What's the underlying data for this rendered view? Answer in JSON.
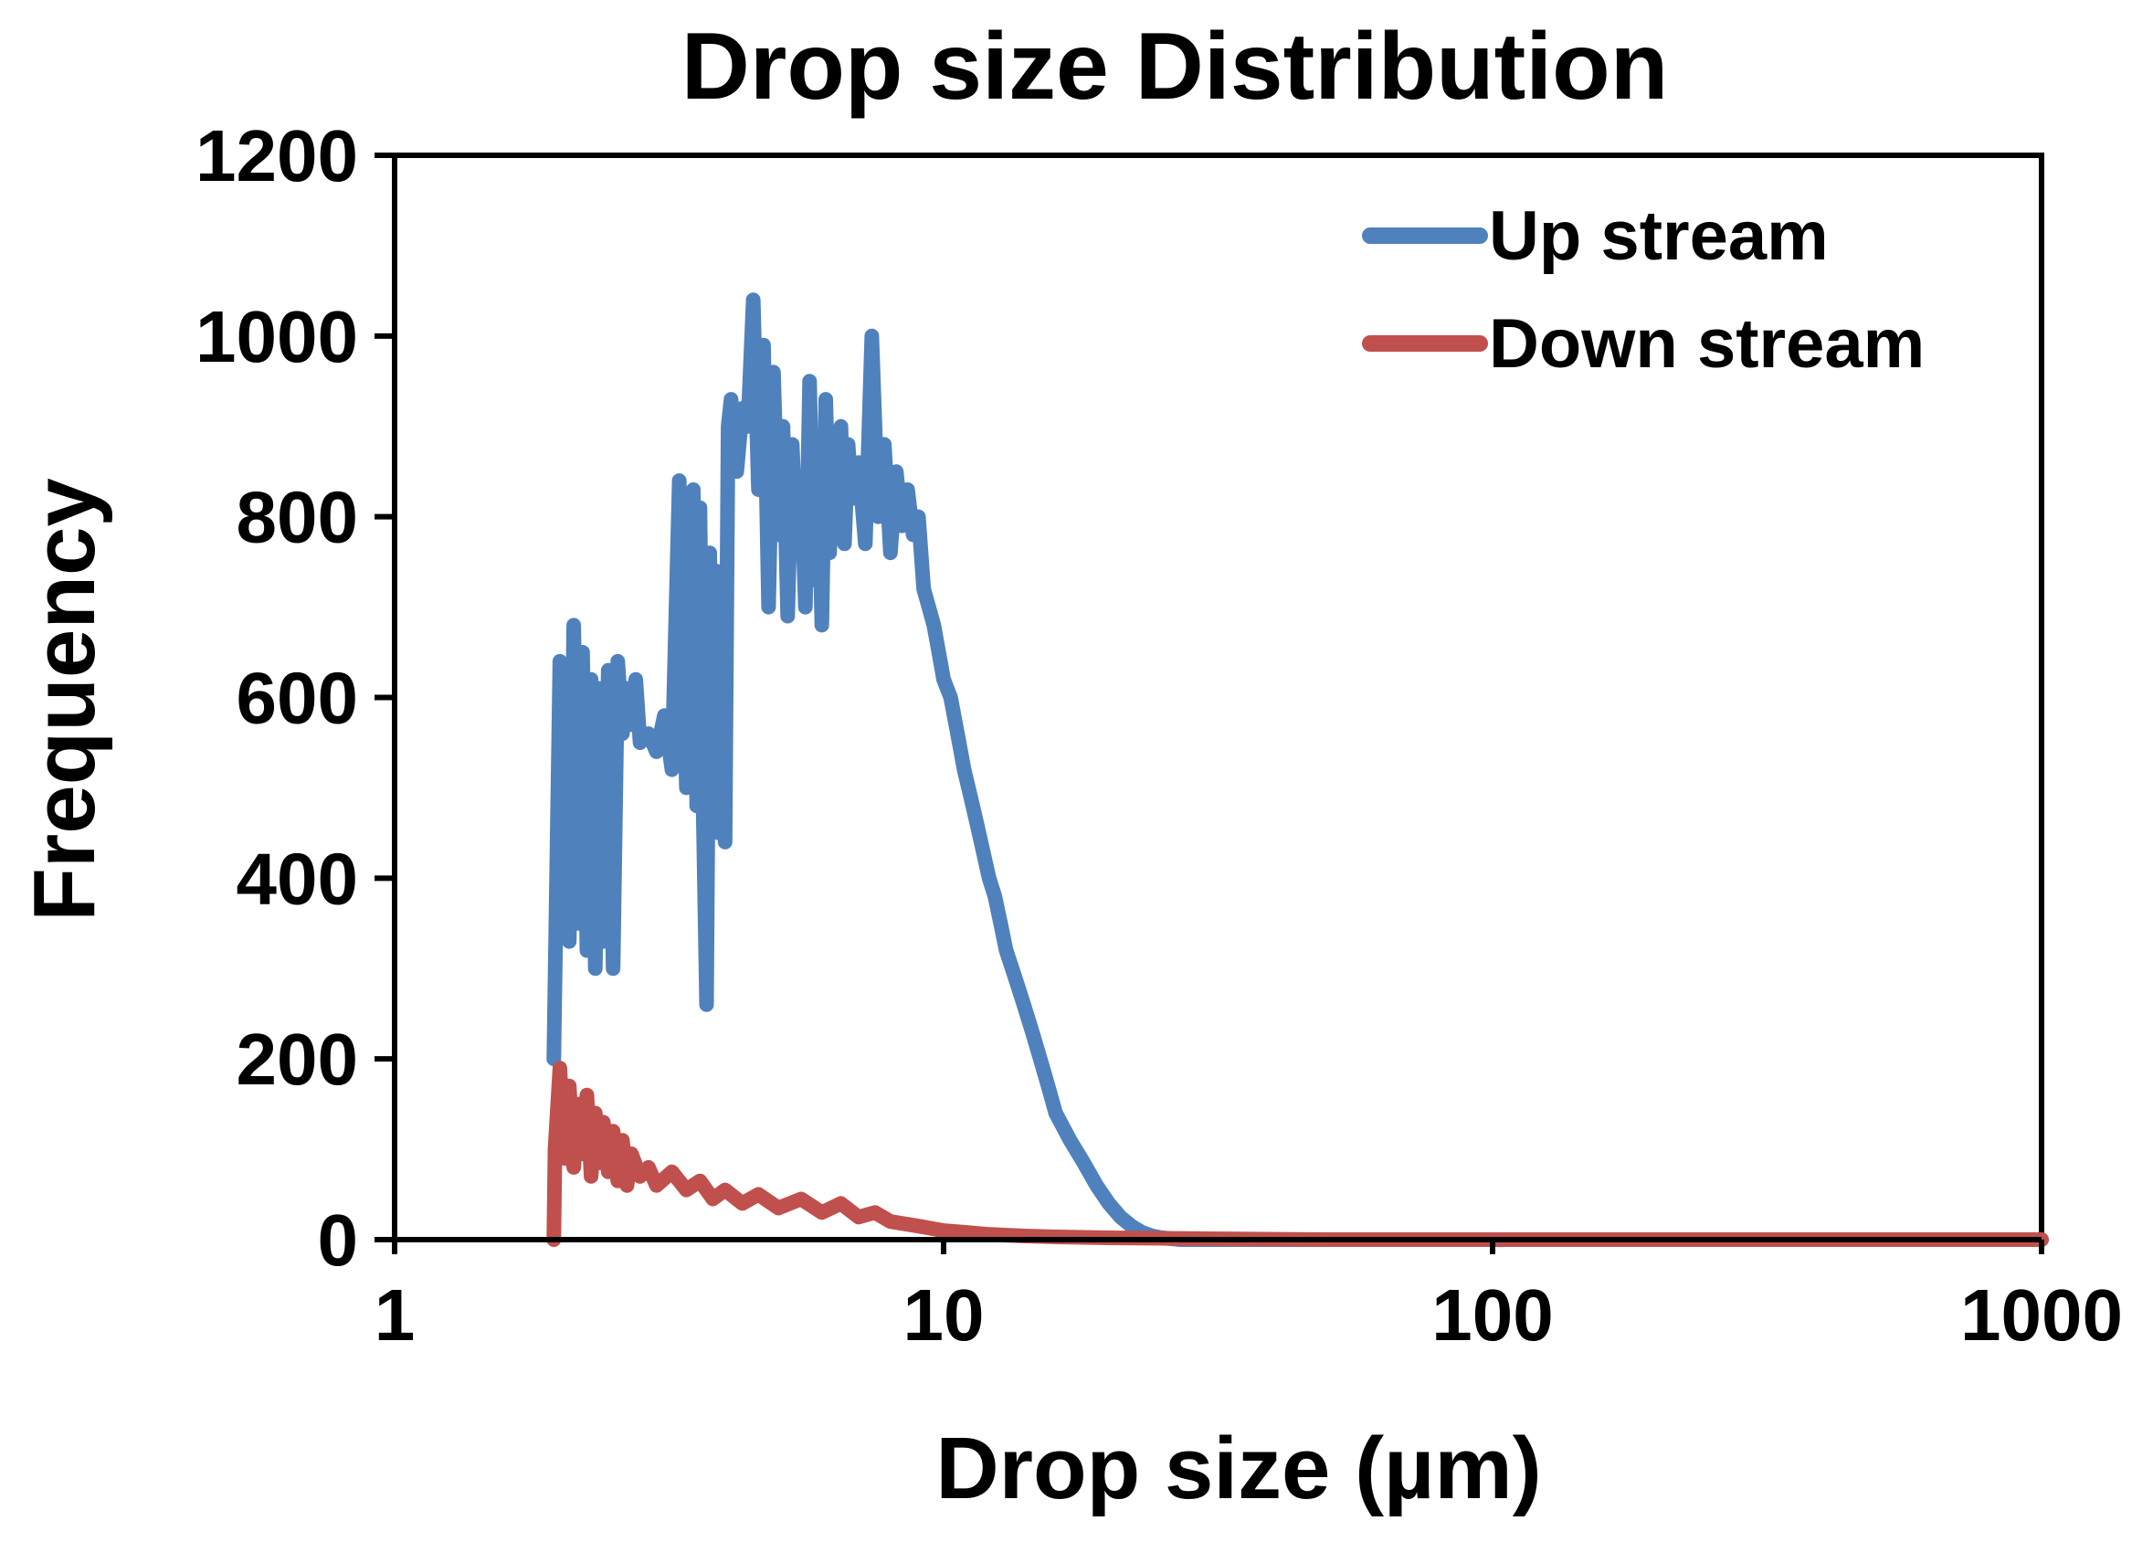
{
  "chart_data": {
    "type": "line",
    "title": "Drop size Distribution",
    "xlabel": "Drop size (µm)",
    "ylabel": "Frequency",
    "x_scale": "log",
    "xlim": [
      1,
      1000
    ],
    "ylim": [
      0,
      1200
    ],
    "x_ticks": [
      1,
      10,
      100,
      1000
    ],
    "x_tick_labels": [
      "1",
      "10",
      "100",
      "1000"
    ],
    "y_ticks": [
      0,
      200,
      400,
      600,
      800,
      1000,
      1200
    ],
    "y_tick_labels": [
      "0",
      "200",
      "400",
      "600",
      "800",
      "1000",
      "1200"
    ],
    "grid": false,
    "legend_position": "top-right",
    "series": [
      {
        "name": "Up stream",
        "color": "#4F81BD",
        "x": [
          1.95,
          2.0,
          2.04,
          2.08,
          2.12,
          2.16,
          2.2,
          2.24,
          2.28,
          2.32,
          2.36,
          2.4,
          2.45,
          2.5,
          2.55,
          2.6,
          2.65,
          2.7,
          2.75,
          2.8,
          2.9,
          3.0,
          3.1,
          3.2,
          3.3,
          3.4,
          3.5,
          3.55,
          3.6,
          3.65,
          3.7,
          3.75,
          3.8,
          3.85,
          3.9,
          3.95,
          4.0,
          4.05,
          4.1,
          4.2,
          4.3,
          4.4,
          4.5,
          4.6,
          4.7,
          4.8,
          4.9,
          5.0,
          5.1,
          5.2,
          5.3,
          5.4,
          5.5,
          5.6,
          5.7,
          5.8,
          5.9,
          6.0,
          6.1,
          6.2,
          6.3,
          6.4,
          6.5,
          6.6,
          6.7,
          6.8,
          7.0,
          7.2,
          7.4,
          7.6,
          7.8,
          8.0,
          8.2,
          8.4,
          8.6,
          8.8,
          9.0,
          9.2,
          9.4,
          9.6,
          9.8,
          10.0,
          10.3,
          10.6,
          10.9,
          11.2,
          11.5,
          11.8,
          12.1,
          12.4,
          12.7,
          13.0,
          13.5,
          14.0,
          14.5,
          15.0,
          15.5,
          16.0,
          17.0,
          18.0,
          19.0,
          20.0,
          21.0,
          22.0,
          23.0,
          24.0,
          25.0,
          26.0,
          27.0,
          28.0,
          30.0,
          32.0,
          35.0,
          40.0,
          50.0,
          70.0,
          100.0,
          200.0,
          500.0,
          1000.0
        ],
        "values": [
          200,
          640,
          600,
          330,
          680,
          350,
          650,
          320,
          620,
          300,
          610,
          330,
          630,
          300,
          640,
          560,
          610,
          570,
          620,
          550,
          560,
          540,
          580,
          520,
          840,
          500,
          830,
          480,
          810,
          470,
          260,
          760,
          460,
          740,
          450,
          700,
          440,
          900,
          930,
          850,
          920,
          900,
          1040,
          830,
          990,
          700,
          960,
          780,
          900,
          690,
          880,
          760,
          840,
          700,
          950,
          730,
          880,
          680,
          930,
          760,
          860,
          780,
          900,
          770,
          880,
          820,
          860,
          770,
          1000,
          800,
          880,
          760,
          850,
          790,
          830,
          780,
          800,
          720,
          700,
          680,
          650,
          620,
          600,
          560,
          520,
          490,
          460,
          430,
          400,
          380,
          350,
          320,
          290,
          260,
          230,
          200,
          170,
          140,
          110,
          85,
          60,
          40,
          25,
          15,
          8,
          4,
          2,
          1,
          0,
          0,
          0,
          0,
          0,
          0,
          0,
          0,
          0,
          0,
          0,
          0
        ]
      },
      {
        "name": "Down stream",
        "color": "#C0504D",
        "x": [
          1.95,
          1.96,
          2.0,
          2.04,
          2.08,
          2.12,
          2.16,
          2.2,
          2.24,
          2.28,
          2.32,
          2.36,
          2.4,
          2.45,
          2.5,
          2.55,
          2.6,
          2.65,
          2.7,
          2.8,
          2.9,
          3.0,
          3.2,
          3.4,
          3.6,
          3.8,
          4.0,
          4.3,
          4.6,
          5.0,
          5.5,
          6.0,
          6.5,
          7.0,
          7.5,
          8.0,
          9.0,
          10.0,
          11.0,
          12.0,
          14.0,
          16.0,
          20.0,
          30.0,
          50.0,
          100.0,
          200.0,
          500.0,
          1000.0
        ],
        "values": [
          0,
          100,
          190,
          90,
          170,
          80,
          150,
          95,
          160,
          70,
          140,
          85,
          130,
          75,
          120,
          65,
          110,
          60,
          95,
          70,
          80,
          60,
          75,
          55,
          65,
          45,
          55,
          40,
          50,
          35,
          45,
          30,
          40,
          25,
          30,
          20,
          15,
          10,
          8,
          6,
          4,
          3,
          2,
          1,
          0,
          0,
          0,
          0,
          0
        ]
      }
    ]
  }
}
